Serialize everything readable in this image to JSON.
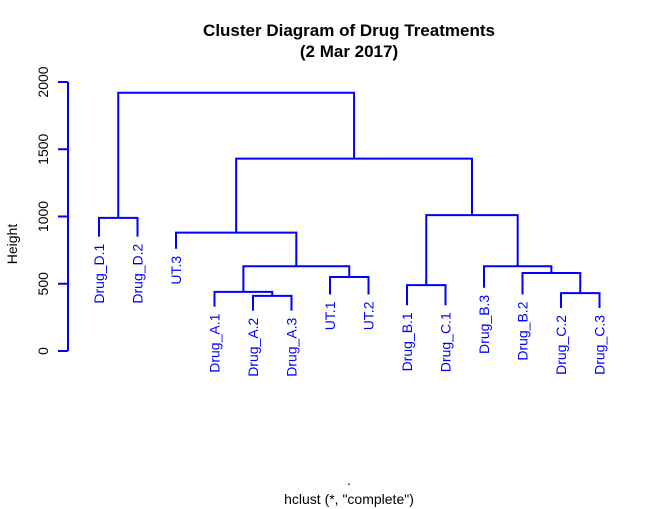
{
  "colors": {
    "tree": "#0000ff",
    "axis": "#0000ff",
    "text": "#000000"
  },
  "chart_data": {
    "type": "dendrogram",
    "title": "Cluster Diagram of Drug Treatments",
    "subtitle": "(2 Mar 2017)",
    "ylabel": "Height",
    "xlabel": ".",
    "sublabel": "hclust (*, \"complete\")",
    "ylim": [
      0,
      2000
    ],
    "yticks": [
      0,
      500,
      1000,
      1500,
      2000
    ],
    "leaves": [
      {
        "label": "Drug_D.1",
        "height": 850
      },
      {
        "label": "Drug_D.2",
        "height": 850
      },
      {
        "label": "UT.3",
        "height": 760
      },
      {
        "label": "Drug_A.1",
        "height": 330
      },
      {
        "label": "Drug_A.2",
        "height": 300
      },
      {
        "label": "Drug_A.3",
        "height": 300
      },
      {
        "label": "UT.1",
        "height": 420
      },
      {
        "label": "UT.2",
        "height": 420
      },
      {
        "label": "Drug_B.1",
        "height": 340
      },
      {
        "label": "Drug_C.1",
        "height": 340
      },
      {
        "label": "Drug_B.3",
        "height": 470
      },
      {
        "label": "Drug_B.2",
        "height": 420
      },
      {
        "label": "Drug_C.2",
        "height": 320
      },
      {
        "label": "Drug_C.3",
        "height": 320
      }
    ],
    "merges": [
      {
        "left": -1,
        "right": -2,
        "height": 990
      },
      {
        "left": -5,
        "right": -6,
        "height": 410
      },
      {
        "left": -4,
        "right": 2,
        "height": 440
      },
      {
        "left": -7,
        "right": -8,
        "height": 550
      },
      {
        "left": 3,
        "right": 4,
        "height": 630
      },
      {
        "left": -3,
        "right": 5,
        "height": 880
      },
      {
        "left": -9,
        "right": -10,
        "height": 490
      },
      {
        "left": -13,
        "right": -14,
        "height": 430
      },
      {
        "left": -12,
        "right": 8,
        "height": 580
      },
      {
        "left": -11,
        "right": 9,
        "height": 630
      },
      {
        "left": 7,
        "right": 10,
        "height": 1010
      },
      {
        "left": 6,
        "right": 11,
        "height": 1430
      },
      {
        "left": 1,
        "right": 12,
        "height": 1920
      }
    ]
  }
}
